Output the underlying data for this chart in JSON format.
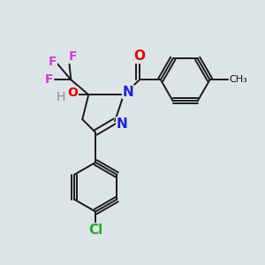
{
  "bg_color": "#dde4e8",
  "bond_color": "#1a1a1a",
  "bond_width": 1.4,
  "figsize": [
    3.0,
    3.0
  ],
  "dpi": 100,
  "colors": {
    "N": "#2222cc",
    "O": "#dd0000",
    "F": "#cc44cc",
    "Cl": "#22aa22",
    "H": "#888888",
    "C": "#111111",
    "bond": "#1a1a1a"
  }
}
